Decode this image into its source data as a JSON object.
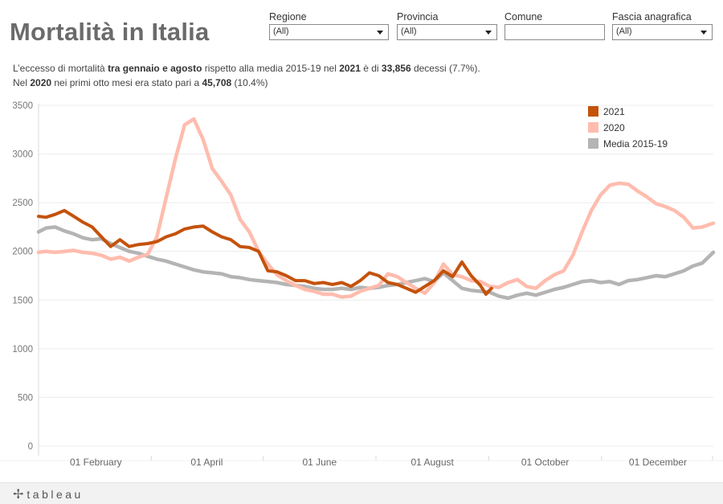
{
  "header": {
    "title": "Mortalità in Italia"
  },
  "filters": [
    {
      "label": "Regione",
      "value": "(All)",
      "has_dropdown": true
    },
    {
      "label": "Provincia",
      "value": "(All)",
      "has_dropdown": true
    },
    {
      "label": "Comune",
      "value": "",
      "has_dropdown": false
    },
    {
      "label": "Fascia anagrafica",
      "value": "(All)",
      "has_dropdown": true
    }
  ],
  "summary": {
    "line1": [
      {
        "text": "L’eccesso di mortalità ",
        "bold": false
      },
      {
        "text": "tra gennaio e agosto",
        "bold": true
      },
      {
        "text": " rispetto alla media 2015-19 nel ",
        "bold": false
      },
      {
        "text": "2021",
        "bold": true
      },
      {
        "text": " è di ",
        "bold": false
      },
      {
        "text": "33,856",
        "bold": true
      },
      {
        "text": " decessi (7.7%).",
        "bold": false
      }
    ],
    "line2": [
      {
        "text": "Nel ",
        "bold": false
      },
      {
        "text": "2020",
        "bold": true
      },
      {
        "text": " nei primi otto mesi era stato pari a ",
        "bold": false
      },
      {
        "text": "45,708",
        "bold": true
      },
      {
        "text": " (10.4%)",
        "bold": false
      }
    ]
  },
  "footer": {
    "brand": "tableau"
  },
  "chart_data": {
    "type": "line",
    "x_unit": "day of year",
    "xlim": [
      1,
      366
    ],
    "ylim": [
      -50,
      3550
    ],
    "yticks": [
      0,
      500,
      1000,
      1500,
      2000,
      2500,
      3000,
      3500
    ],
    "xticks": [
      {
        "label": "01 February",
        "x": 32
      },
      {
        "label": "01 April",
        "x": 92
      },
      {
        "label": "01 June",
        "x": 153
      },
      {
        "label": "01 August",
        "x": 214
      },
      {
        "label": "01 October",
        "x": 275
      },
      {
        "label": "01 December",
        "x": 336
      }
    ],
    "legend_position": "top-right",
    "grid": "horizontal",
    "series": [
      {
        "name": "Media 2015-19",
        "color": "#b4b4b4",
        "x": [
          1,
          5,
          10,
          15,
          20,
          25,
          30,
          35,
          40,
          45,
          50,
          55,
          60,
          65,
          70,
          75,
          80,
          85,
          90,
          95,
          100,
          105,
          110,
          115,
          120,
          125,
          130,
          135,
          140,
          145,
          150,
          155,
          160,
          165,
          170,
          175,
          180,
          185,
          190,
          195,
          200,
          205,
          210,
          215,
          220,
          225,
          230,
          235,
          240,
          245,
          250,
          255,
          260,
          265,
          270,
          275,
          280,
          285,
          290,
          295,
          300,
          305,
          310,
          315,
          320,
          325,
          330,
          335,
          340,
          345,
          350,
          355,
          360,
          366
        ],
        "values": [
          2200,
          2240,
          2250,
          2210,
          2180,
          2140,
          2120,
          2130,
          2080,
          2040,
          2000,
          1980,
          1950,
          1920,
          1900,
          1870,
          1840,
          1810,
          1790,
          1780,
          1770,
          1740,
          1730,
          1710,
          1700,
          1690,
          1680,
          1660,
          1650,
          1640,
          1620,
          1610,
          1610,
          1620,
          1610,
          1630,
          1620,
          1630,
          1650,
          1660,
          1680,
          1700,
          1720,
          1690,
          1780,
          1700,
          1620,
          1600,
          1590,
          1580,
          1540,
          1520,
          1550,
          1570,
          1550,
          1580,
          1610,
          1630,
          1660,
          1690,
          1700,
          1680,
          1690,
          1660,
          1700,
          1710,
          1730,
          1750,
          1740,
          1770,
          1800,
          1850,
          1880,
          1990
        ]
      },
      {
        "name": "2020",
        "color": "#ffbcae",
        "x": [
          1,
          5,
          10,
          15,
          20,
          25,
          30,
          35,
          40,
          45,
          50,
          55,
          60,
          65,
          70,
          75,
          80,
          85,
          90,
          95,
          100,
          105,
          110,
          115,
          120,
          125,
          130,
          135,
          140,
          145,
          150,
          155,
          160,
          165,
          170,
          175,
          180,
          185,
          190,
          195,
          200,
          205,
          210,
          215,
          220,
          225,
          230,
          235,
          240,
          245,
          250,
          255,
          260,
          265,
          270,
          275,
          280,
          285,
          290,
          295,
          300,
          305,
          310,
          315,
          320,
          325,
          330,
          335,
          340,
          345,
          350,
          355,
          360,
          366
        ],
        "values": [
          1990,
          2000,
          1990,
          2000,
          2010,
          1990,
          1980,
          1960,
          1920,
          1940,
          1900,
          1940,
          1970,
          2150,
          2550,
          2950,
          3300,
          3360,
          3150,
          2850,
          2720,
          2580,
          2330,
          2200,
          2000,
          1870,
          1760,
          1700,
          1650,
          1610,
          1590,
          1560,
          1560,
          1530,
          1540,
          1590,
          1620,
          1650,
          1770,
          1740,
          1680,
          1620,
          1570,
          1680,
          1870,
          1760,
          1740,
          1700,
          1690,
          1640,
          1630,
          1680,
          1710,
          1640,
          1620,
          1700,
          1760,
          1800,
          1960,
          2200,
          2420,
          2580,
          2680,
          2700,
          2690,
          2620,
          2560,
          2490,
          2460,
          2420,
          2350,
          2240,
          2250,
          2290
        ]
      },
      {
        "name": "2021",
        "color": "#c4520b",
        "x": [
          1,
          5,
          10,
          15,
          20,
          25,
          30,
          35,
          40,
          45,
          50,
          55,
          60,
          65,
          70,
          75,
          80,
          85,
          90,
          95,
          100,
          105,
          110,
          115,
          120,
          125,
          130,
          135,
          140,
          145,
          150,
          155,
          160,
          165,
          170,
          175,
          180,
          185,
          190,
          195,
          200,
          205,
          210,
          215,
          220,
          225,
          230,
          235,
          240,
          243,
          246
        ],
        "values": [
          2360,
          2350,
          2380,
          2420,
          2360,
          2300,
          2250,
          2150,
          2050,
          2120,
          2050,
          2070,
          2080,
          2100,
          2150,
          2180,
          2230,
          2250,
          2260,
          2200,
          2150,
          2120,
          2050,
          2040,
          2000,
          1800,
          1790,
          1750,
          1700,
          1700,
          1670,
          1680,
          1660,
          1680,
          1640,
          1700,
          1780,
          1750,
          1680,
          1660,
          1620,
          1580,
          1640,
          1700,
          1800,
          1740,
          1890,
          1750,
          1650,
          1560,
          1620
        ]
      }
    ]
  }
}
